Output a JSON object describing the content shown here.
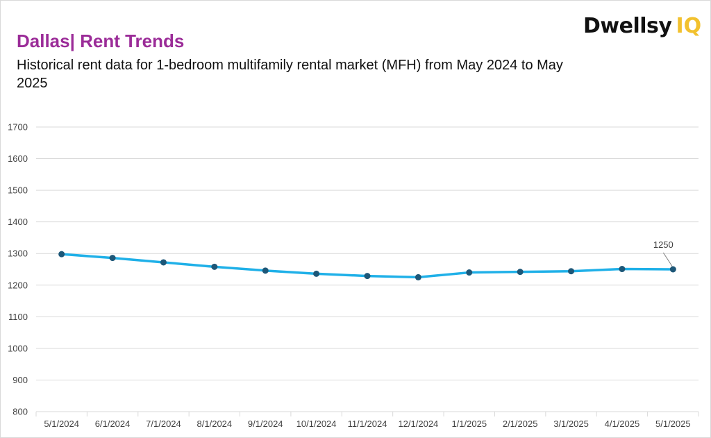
{
  "header": {
    "title": "Dallas| Rent Trends",
    "subtitle": "Historical rent data for 1-bedroom multifamily rental market (MFH) from May 2024 to May 2025"
  },
  "logo": {
    "word": "Dwellsy",
    "suffix": "IQ",
    "suffix_color": "#f2c12e"
  },
  "colors": {
    "line": "#1fb0e8",
    "marker": "#1d5778",
    "title": "#9b2c98",
    "grid": "#d9d9d9"
  },
  "chart_data": {
    "type": "line",
    "title": "Dallas| Rent Trends",
    "subtitle": "Historical rent data for 1-bedroom multifamily rental market (MFH) from May 2024 to May 2025",
    "xlabel": "",
    "ylabel": "",
    "ylim": [
      800,
      1700
    ],
    "yticks": [
      800,
      900,
      1000,
      1100,
      1200,
      1300,
      1400,
      1500,
      1600,
      1700
    ],
    "grid": true,
    "legend": "none",
    "categories": [
      "5/1/2024",
      "6/1/2024",
      "7/1/2024",
      "8/1/2024",
      "9/1/2024",
      "10/1/2024",
      "11/1/2024",
      "12/1/2024",
      "1/1/2025",
      "2/1/2025",
      "3/1/2025",
      "4/1/2025",
      "5/1/2025"
    ],
    "series": [
      {
        "values": [
          1298,
          1286,
          1272,
          1258,
          1246,
          1236,
          1229,
          1225,
          1240,
          1242,
          1244,
          1251,
          1250
        ]
      }
    ],
    "annotations": [
      {
        "category": "5/1/2025",
        "text": "1250"
      }
    ]
  }
}
